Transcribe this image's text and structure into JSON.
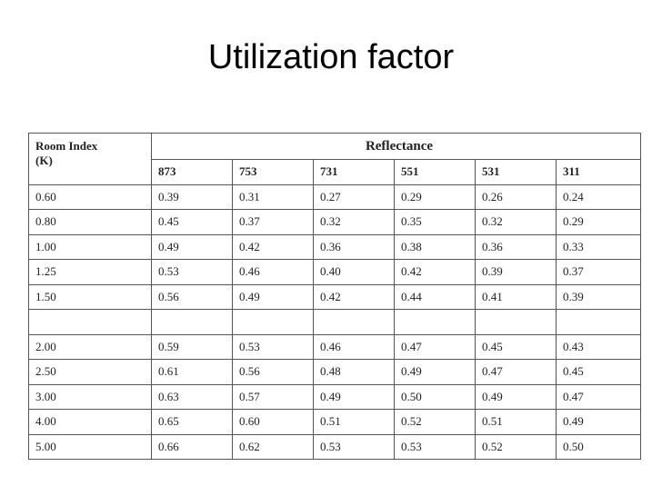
{
  "title": "Utilization factor",
  "table": {
    "row_header": [
      "Room Index",
      "(K)"
    ],
    "group_header": "Reflectance",
    "columns": [
      "873",
      "753",
      "731",
      "551",
      "531",
      "311"
    ],
    "row_groups": [
      [
        [
          "0.60",
          "0.39",
          "0.31",
          "0.27",
          "0.29",
          "0.26",
          "0.24"
        ],
        [
          "0.80",
          "0.45",
          "0.37",
          "0.32",
          "0.35",
          "0.32",
          "0.29"
        ],
        [
          "1.00",
          "0.49",
          "0.42",
          "0.36",
          "0.38",
          "0.36",
          "0.33"
        ],
        [
          "1.25",
          "0.53",
          "0.46",
          "0.40",
          "0.42",
          "0.39",
          "0.37"
        ],
        [
          "1.50",
          "0.56",
          "0.49",
          "0.42",
          "0.44",
          "0.41",
          "0.39"
        ]
      ],
      [
        [
          "2.00",
          "0.59",
          "0.53",
          "0.46",
          "0.47",
          "0.45",
          "0.43"
        ],
        [
          "2.50",
          "0.61",
          "0.56",
          "0.48",
          "0.49",
          "0.47",
          "0.45"
        ],
        [
          "3.00",
          "0.63",
          "0.57",
          "0.49",
          "0.50",
          "0.49",
          "0.47"
        ],
        [
          "4.00",
          "0.65",
          "0.60",
          "0.51",
          "0.52",
          "0.51",
          "0.49"
        ],
        [
          "5.00",
          "0.66",
          "0.62",
          "0.53",
          "0.53",
          "0.52",
          "0.50"
        ]
      ]
    ]
  }
}
